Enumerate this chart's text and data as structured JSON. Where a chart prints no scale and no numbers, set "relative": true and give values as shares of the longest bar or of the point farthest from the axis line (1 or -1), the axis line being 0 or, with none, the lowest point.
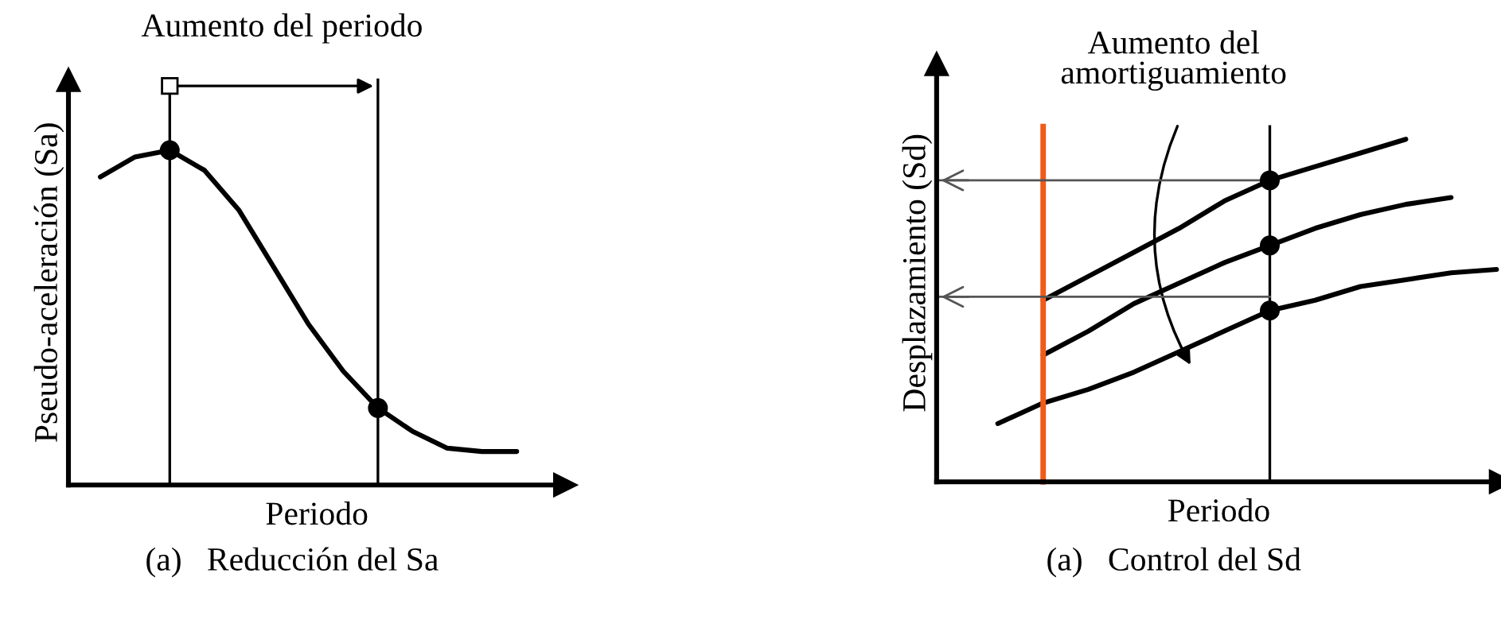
{
  "chart_data": [
    {
      "type": "line",
      "relative": true,
      "xlabel": "Periodo",
      "ylabel": "Pseudo-aceleración (Sa)",
      "annotations": [
        "Aumento del periodo",
        "(a)   Reducción del Sa"
      ],
      "categories": [
        null,
        null,
        null,
        null,
        null,
        null,
        null,
        null,
        null,
        null,
        null,
        null,
        null
      ],
      "series": [
        {
          "color": "#000000",
          "values": [
            0.92,
            0.98,
            1,
            0.94,
            0.82,
            0.65,
            0.48,
            0.34,
            0.23,
            0.16,
            0.11,
            0.1,
            0.1
          ]
        }
      ],
      "grid": false,
      "legend": false
    },
    {
      "type": "line",
      "relative": true,
      "xlabel": "Periodo",
      "ylabel": "Desplazamiento (Sd)",
      "annotations": [
        "Aumento del\namortiguamiento",
        "(a)   Control del Sd"
      ],
      "categories": [
        null,
        null,
        null,
        null,
        null,
        null,
        null,
        null,
        null,
        null,
        null,
        null
      ],
      "series": [
        {
          "color": "#000000",
          "values": [
            null,
            0.53,
            0.6,
            0.67,
            0.74,
            0.82,
            0.88,
            0.92,
            0.96,
            1,
            null,
            null
          ]
        },
        {
          "color": "#000000",
          "values": [
            null,
            0.37,
            0.44,
            0.52,
            0.58,
            0.64,
            0.69,
            0.74,
            0.78,
            0.81,
            0.83,
            null
          ]
        },
        {
          "color": "#000000",
          "values": [
            0.17,
            0.23,
            0.27,
            0.32,
            0.38,
            0.44,
            0.5,
            0.53,
            0.57,
            0.59,
            0.61,
            0.62
          ]
        }
      ],
      "ref_lines": [
        {
          "axis": "y",
          "value": 0.88,
          "color": "#555555"
        },
        {
          "axis": "y",
          "value": 0.54,
          "color": "#555555"
        }
      ],
      "grid": false,
      "legend": false
    }
  ]
}
